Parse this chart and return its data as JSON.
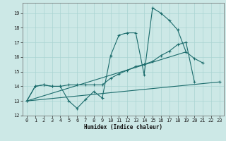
{
  "bg_color": "#cce8e6",
  "grid_color": "#aad4d2",
  "line_color": "#1a6b6b",
  "xlabel": "Humidex (Indice chaleur)",
  "xlim": [
    -0.5,
    23.5
  ],
  "ylim": [
    12,
    19.7
  ],
  "xticks": [
    0,
    1,
    2,
    3,
    4,
    5,
    6,
    7,
    8,
    9,
    10,
    11,
    12,
    13,
    14,
    15,
    16,
    17,
    18,
    19,
    20,
    21,
    22,
    23
  ],
  "yticks": [
    12,
    13,
    14,
    15,
    16,
    17,
    18,
    19
  ],
  "line1_y": [
    13.0,
    14.0,
    14.1,
    14.0,
    14.0,
    13.0,
    12.5,
    13.1,
    13.65,
    13.2,
    16.1,
    17.5,
    17.65,
    17.65,
    14.8,
    19.35,
    19.0,
    18.5,
    17.85,
    16.35,
    15.9,
    15.6,
    null,
    14.3
  ],
  "line2_y": [
    13.0,
    14.0,
    14.1,
    14.0,
    14.0,
    14.1,
    14.1,
    14.1,
    14.1,
    14.1,
    14.55,
    14.85,
    15.1,
    15.35,
    15.5,
    15.7,
    16.1,
    16.4,
    16.85,
    17.0,
    14.3,
    null,
    null,
    null
  ],
  "line3": [
    [
      0,
      13.0
    ],
    [
      23,
      14.3
    ]
  ],
  "line4": [
    [
      0,
      13.0
    ],
    [
      19,
      16.35
    ]
  ]
}
